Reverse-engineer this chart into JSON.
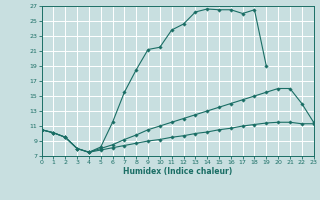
{
  "xlabel": "Humidex (Indice chaleur)",
  "xlim": [
    0,
    23
  ],
  "ylim": [
    7,
    27
  ],
  "xticks": [
    0,
    1,
    2,
    3,
    4,
    5,
    6,
    7,
    8,
    9,
    10,
    11,
    12,
    13,
    14,
    15,
    16,
    17,
    18,
    19,
    20,
    21,
    22,
    23
  ],
  "yticks": [
    7,
    9,
    11,
    13,
    15,
    17,
    19,
    21,
    23,
    25,
    27
  ],
  "bg_color": "#c8dfe0",
  "grid_color": "#ffffff",
  "line_color": "#1a6e65",
  "line1_x": [
    0,
    1,
    2,
    3,
    4,
    5,
    6,
    7,
    8,
    9,
    10,
    11,
    12,
    13,
    14,
    15,
    16,
    17,
    18,
    19
  ],
  "line1_y": [
    10.5,
    10.1,
    9.5,
    8.0,
    7.5,
    8.2,
    11.5,
    15.5,
    18.5,
    21.2,
    21.5,
    23.8,
    24.6,
    26.2,
    26.6,
    26.5,
    26.5,
    26.0,
    26.5,
    19.0
  ],
  "line2_x": [
    0,
    1,
    2,
    3,
    4,
    5,
    6,
    7,
    8,
    9,
    10,
    11,
    12,
    13,
    14,
    15,
    16,
    17,
    18,
    19,
    20,
    21,
    22,
    23
  ],
  "line2_y": [
    10.5,
    10.1,
    9.5,
    8.0,
    7.5,
    8.0,
    8.5,
    9.2,
    9.8,
    10.5,
    11.0,
    11.5,
    12.0,
    12.5,
    13.0,
    13.5,
    14.0,
    14.5,
    15.0,
    15.5,
    16.0,
    16.0,
    14.0,
    11.5
  ],
  "line3_x": [
    0,
    1,
    2,
    3,
    4,
    5,
    6,
    7,
    8,
    9,
    10,
    11,
    12,
    13,
    14,
    15,
    16,
    17,
    18,
    19,
    20,
    21,
    22,
    23
  ],
  "line3_y": [
    10.5,
    10.1,
    9.5,
    8.0,
    7.5,
    7.8,
    8.1,
    8.4,
    8.7,
    9.0,
    9.2,
    9.5,
    9.7,
    10.0,
    10.2,
    10.5,
    10.7,
    11.0,
    11.2,
    11.4,
    11.5,
    11.5,
    11.3,
    11.3
  ]
}
